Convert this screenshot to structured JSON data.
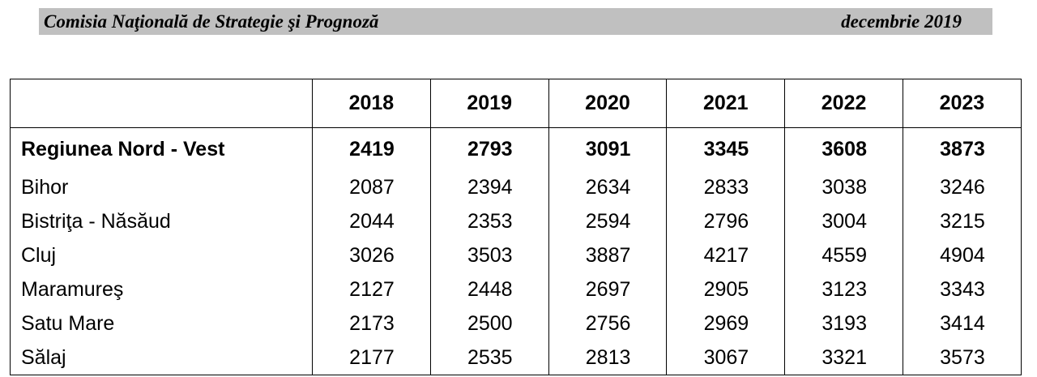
{
  "header": {
    "left_title": "Comisia Naţională de Strategie şi Prognoză",
    "right_title": "decembrie 2019"
  },
  "table": {
    "columns": [
      "",
      "2018",
      "2019",
      "2020",
      "2021",
      "2022",
      "2023"
    ],
    "rows": [
      {
        "label": "Regiunea Nord - Vest",
        "values": [
          "2419",
          "2793",
          "3091",
          "3345",
          "3608",
          "3873"
        ],
        "bold": true
      },
      {
        "label": "Bihor",
        "values": [
          "2087",
          "2394",
          "2634",
          "2833",
          "3038",
          "3246"
        ]
      },
      {
        "label": "Bistriţa - Năsăud",
        "values": [
          "2044",
          "2353",
          "2594",
          "2796",
          "3004",
          "3215"
        ]
      },
      {
        "label": "Cluj",
        "values": [
          "3026",
          "3503",
          "3887",
          "4217",
          "4559",
          "4904"
        ]
      },
      {
        "label": "Maramureş",
        "values": [
          "2127",
          "2448",
          "2697",
          "2905",
          "3123",
          "3343"
        ]
      },
      {
        "label": "Satu Mare",
        "values": [
          "2173",
          "2500",
          "2756",
          "2969",
          "3193",
          "3414"
        ]
      },
      {
        "label": "Sălaj",
        "values": [
          "2177",
          "2535",
          "2813",
          "3067",
          "3321",
          "3573"
        ]
      }
    ]
  }
}
